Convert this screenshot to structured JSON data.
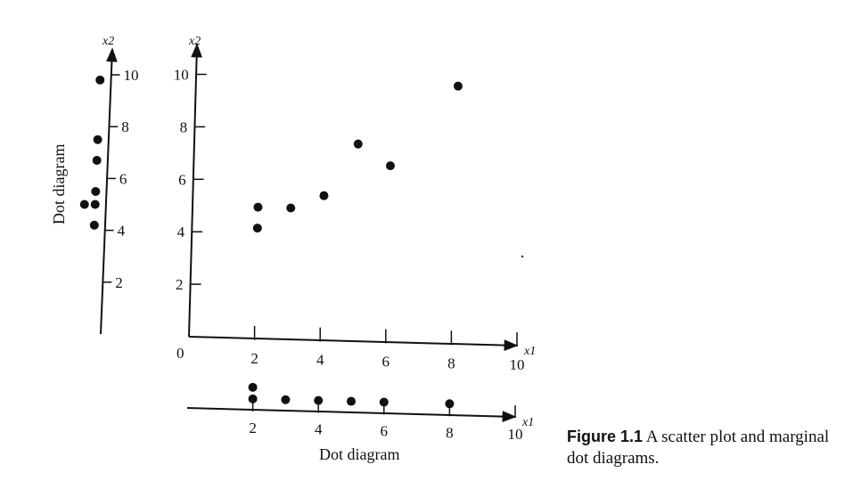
{
  "chart_data": {
    "type": "scatter",
    "points": [
      {
        "x": 2,
        "y": 4.2
      },
      {
        "x": 2,
        "y": 5
      },
      {
        "x": 3,
        "y": 5
      },
      {
        "x": 4,
        "y": 5.5
      },
      {
        "x": 5,
        "y": 7.5
      },
      {
        "x": 6,
        "y": 6.7
      },
      {
        "x": 8,
        "y": 9.8
      }
    ],
    "xlabel": "x1",
    "ylabel": "x2",
    "x_ticks": [
      "2",
      "4",
      "6",
      "8",
      "10"
    ],
    "y_ticks": [
      "2",
      "4",
      "6",
      "8",
      "10"
    ],
    "origin_label": "0",
    "xlim": [
      0,
      11
    ],
    "ylim": [
      0,
      11.5
    ],
    "grid": false,
    "marginal_x": {
      "label": "Dot diagram",
      "x_ticks": [
        "2",
        "4",
        "6",
        "8",
        "10"
      ],
      "axis_label": "x1"
    },
    "marginal_y": {
      "label": "Dot diagram",
      "y_ticks": [
        "2",
        "4",
        "6",
        "8",
        "10"
      ],
      "axis_label": "x2"
    }
  },
  "caption": {
    "label": "Figure 1.1",
    "text": "A scatter plot and marginal dot diagrams."
  }
}
